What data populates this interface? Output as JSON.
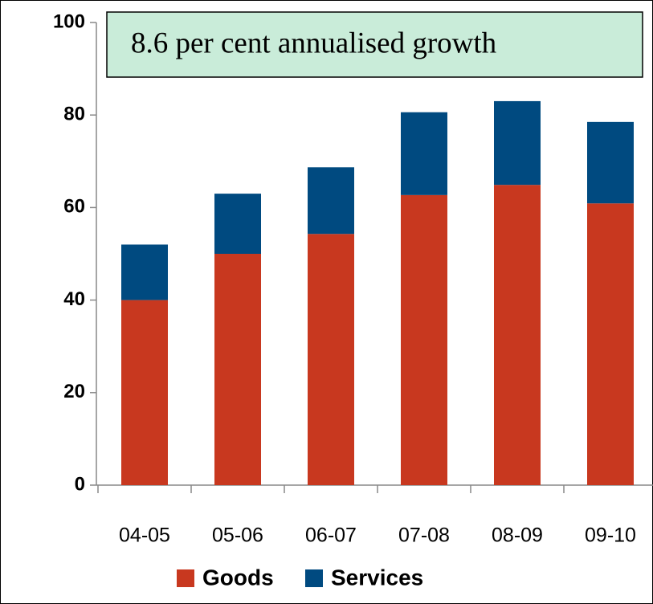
{
  "chart_data": {
    "type": "stacked_bar",
    "annotation": "8.6 per cent annualised growth",
    "categories": [
      "04-05",
      "05-06",
      "06-07",
      "07-08",
      "08-09",
      "09-10"
    ],
    "series": [
      {
        "name": "Goods",
        "color": "#c8381f",
        "values": [
          40,
          50,
          54.3,
          62.7,
          64.9,
          60.9
        ]
      },
      {
        "name": "Services",
        "color": "#004a80",
        "values": [
          12,
          13,
          14.4,
          17.9,
          18.1,
          17.6
        ]
      }
    ],
    "ylim": [
      0,
      100
    ],
    "yticks": [
      0,
      20,
      40,
      60,
      80,
      100
    ],
    "grid": false
  }
}
